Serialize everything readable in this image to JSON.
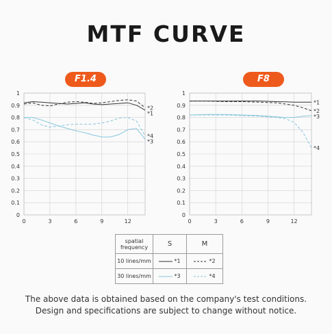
{
  "title": "MTF CURVE",
  "colors": {
    "accent": "#ee5a1c",
    "line_10": "#333333",
    "line_30": "#86c6dc",
    "grid": "#d0d0d0"
  },
  "chart_data": [
    {
      "type": "line",
      "title": "F1.4",
      "xlim": [
        0,
        14
      ],
      "ylim": [
        0,
        1
      ],
      "xticks": [
        "0",
        "3",
        "6",
        "9",
        "12"
      ],
      "yticks": [
        "0",
        "0.1",
        "0.2",
        "0.3",
        "0.4",
        "0.5",
        "0.6",
        "0.7",
        "0.8",
        "0.9",
        "1"
      ],
      "grid": true,
      "series": [
        {
          "name": "*1",
          "group": "10 lines/mm",
          "type": "S",
          "x": [
            0,
            1,
            2,
            3,
            4,
            5,
            6,
            7,
            8,
            9,
            10,
            11,
            12,
            13,
            14
          ],
          "y": [
            0.92,
            0.93,
            0.925,
            0.92,
            0.915,
            0.91,
            0.915,
            0.92,
            0.91,
            0.905,
            0.91,
            0.915,
            0.92,
            0.9,
            0.86
          ]
        },
        {
          "name": "*2",
          "group": "10 lines/mm",
          "type": "M",
          "x": [
            0,
            1,
            2,
            3,
            4,
            5,
            6,
            7,
            8,
            9,
            10,
            11,
            12,
            13,
            14
          ],
          "y": [
            0.91,
            0.92,
            0.9,
            0.895,
            0.91,
            0.925,
            0.93,
            0.925,
            0.915,
            0.92,
            0.93,
            0.94,
            0.945,
            0.935,
            0.88
          ]
        },
        {
          "name": "*3",
          "group": "30 lines/mm",
          "type": "S",
          "x": [
            0,
            1,
            2,
            3,
            4,
            5,
            6,
            7,
            8,
            9,
            10,
            11,
            12,
            13,
            14
          ],
          "y": [
            0.8,
            0.8,
            0.78,
            0.755,
            0.73,
            0.71,
            0.69,
            0.675,
            0.655,
            0.64,
            0.64,
            0.66,
            0.7,
            0.71,
            0.62
          ]
        },
        {
          "name": "*4",
          "group": "30 lines/mm",
          "type": "M",
          "x": [
            0,
            1,
            2,
            3,
            4,
            5,
            6,
            7,
            8,
            9,
            10,
            11,
            12,
            13,
            14
          ],
          "y": [
            0.8,
            0.78,
            0.74,
            0.72,
            0.73,
            0.74,
            0.745,
            0.745,
            0.745,
            0.755,
            0.77,
            0.795,
            0.8,
            0.77,
            0.65
          ]
        }
      ]
    },
    {
      "type": "line",
      "title": "F8",
      "xlim": [
        0,
        14
      ],
      "ylim": [
        0,
        1
      ],
      "xticks": [
        "0",
        "3",
        "6",
        "9",
        "12"
      ],
      "yticks": [
        "0",
        "0.1",
        "0.2",
        "0.3",
        "0.4",
        "0.5",
        "0.6",
        "0.7",
        "0.8",
        "0.9",
        "1"
      ],
      "grid": true,
      "series": [
        {
          "name": "*1",
          "group": "10 lines/mm",
          "type": "S",
          "x": [
            0,
            2,
            4,
            6,
            8,
            10,
            11,
            12,
            13,
            14
          ],
          "y": [
            0.935,
            0.935,
            0.935,
            0.935,
            0.935,
            0.93,
            0.928,
            0.925,
            0.925,
            0.925
          ]
        },
        {
          "name": "*2",
          "group": "10 lines/mm",
          "type": "M",
          "x": [
            0,
            2,
            4,
            6,
            8,
            10,
            11,
            12,
            13,
            14
          ],
          "y": [
            0.935,
            0.935,
            0.93,
            0.93,
            0.925,
            0.92,
            0.91,
            0.9,
            0.88,
            0.855
          ]
        },
        {
          "name": "*3",
          "group": "30 lines/mm",
          "type": "S",
          "x": [
            0,
            2,
            4,
            6,
            8,
            10,
            11,
            12,
            13,
            14
          ],
          "y": [
            0.82,
            0.825,
            0.825,
            0.82,
            0.815,
            0.805,
            0.8,
            0.8,
            0.81,
            0.815
          ]
        },
        {
          "name": "*4",
          "group": "30 lines/mm",
          "type": "M",
          "x": [
            0,
            2,
            4,
            6,
            8,
            10,
            11,
            12,
            13,
            14
          ],
          "y": [
            0.82,
            0.82,
            0.82,
            0.815,
            0.81,
            0.8,
            0.79,
            0.76,
            0.68,
            0.55
          ]
        }
      ]
    }
  ],
  "legend_table": {
    "header": {
      "col1": "spatial frequency",
      "col2": "S",
      "col3": "M"
    },
    "rows": [
      {
        "label": "10 lines/mm",
        "s": "*1",
        "m": "*2"
      },
      {
        "label": "30 lines/mm",
        "s": "*3",
        "m": "*4"
      }
    ]
  },
  "footer": {
    "line1": "The above data is obtained based on the company's test conditions.",
    "line2": "Design and specifications are subject to change without notice."
  }
}
